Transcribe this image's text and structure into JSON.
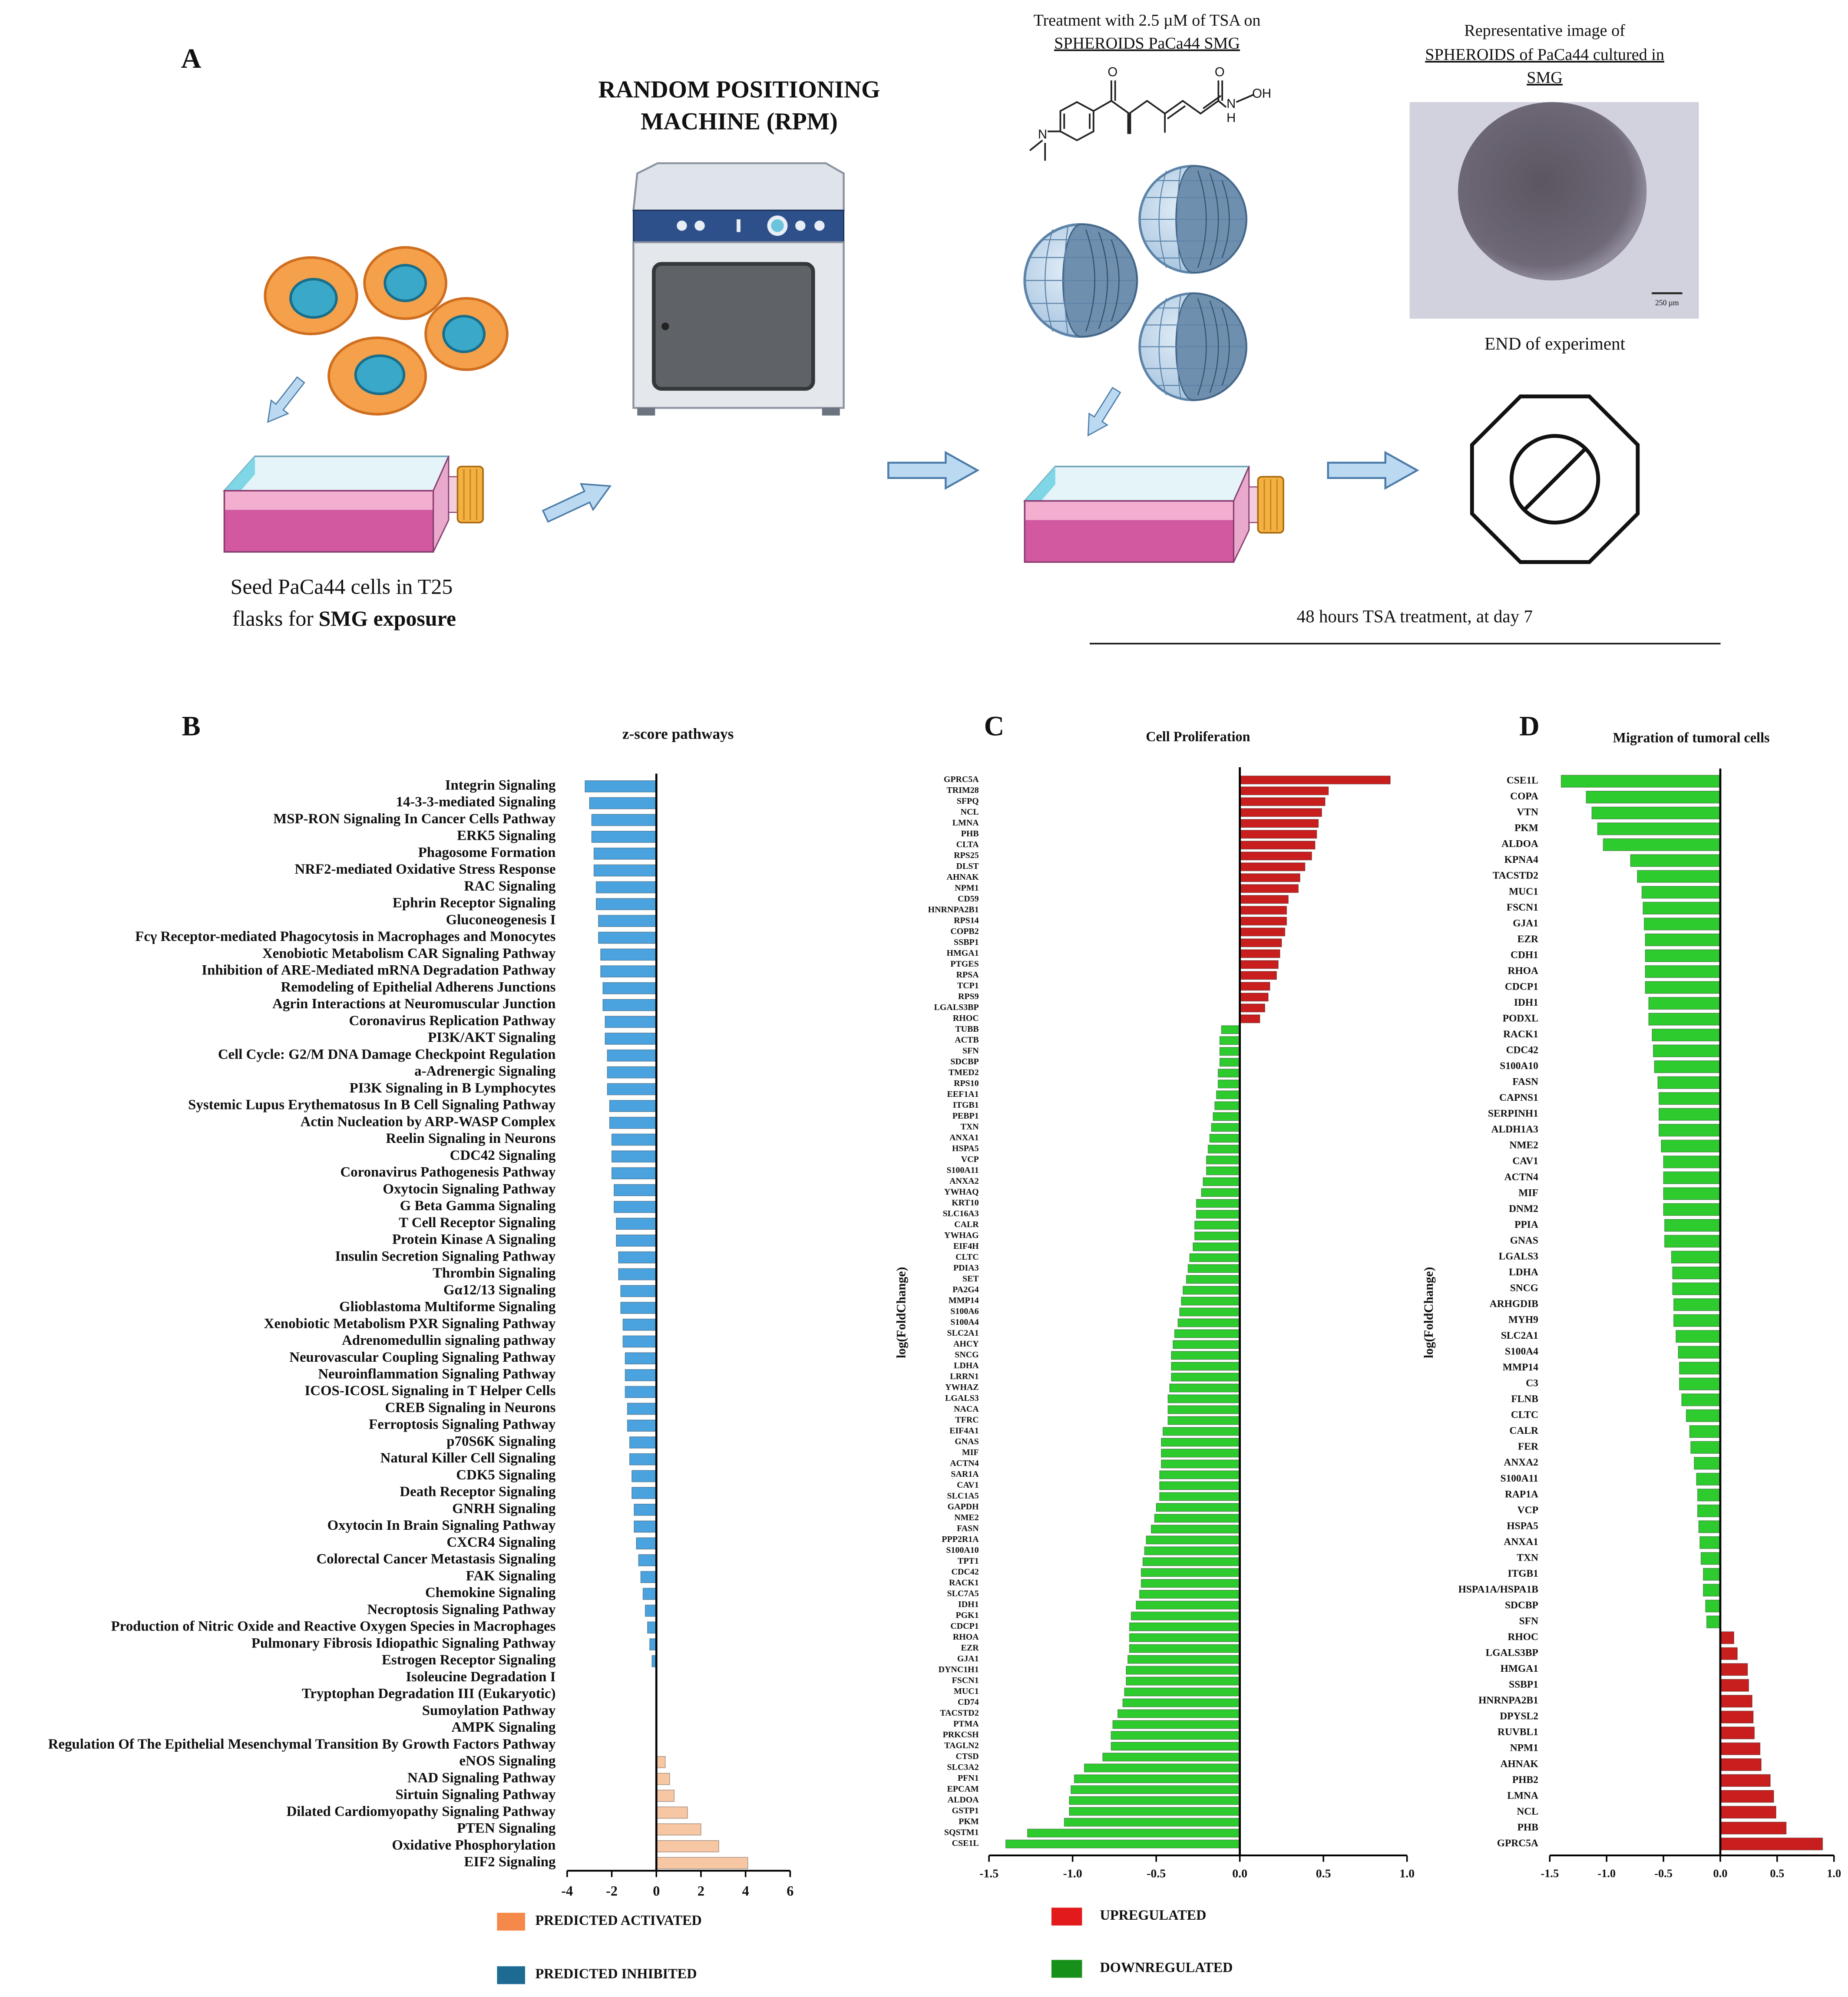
{
  "panel_a": {
    "label": "A",
    "rpm_title": [
      "RANDOM POSITIONING",
      "MACHINE (RPM)"
    ],
    "treatment": [
      "Treatment with 2.5 µM of TSA on",
      "SPHEROIDS PaCa44 SMG"
    ],
    "atoms": [
      "O",
      "O",
      "N",
      "H",
      "OH",
      "N"
    ],
    "image_title": [
      "Representative image of",
      "SPHEROIDS of PaCa44 cultured in",
      "SMG"
    ],
    "scale_bar": "250 µm",
    "end_text": "END of experiment",
    "seed": [
      "Seed PaCa44 cells in T25",
      "flasks  for",
      "SMG exposure"
    ],
    "duration": "48 hours TSA treatment, at day 7"
  },
  "chart_data": [
    {
      "type": "bar",
      "horizontal": true,
      "panel": "B",
      "title": "z-score pathways",
      "categories": [
        "Integrin Signaling",
        "14-3-3-mediated Signaling",
        "MSP-RON Signaling In Cancer Cells Pathway",
        "ERK5 Signaling",
        "Phagosome Formation",
        "NRF2-mediated Oxidative Stress Response",
        "RAC Signaling",
        "Ephrin Receptor Signaling",
        "Gluconeogenesis I",
        "Fcγ Receptor-mediated Phagocytosis in Macrophages and Monocytes",
        "Xenobiotic Metabolism CAR Signaling Pathway",
        "Inhibition of ARE-Mediated mRNA Degradation Pathway",
        "Remodeling of Epithelial Adherens Junctions",
        "Agrin Interactions at Neuromuscular Junction",
        "Coronavirus Replication Pathway",
        "PI3K/AKT Signaling",
        "Cell Cycle: G2/M DNA Damage Checkpoint Regulation",
        "a-Adrenergic Signaling",
        "PI3K Signaling in B Lymphocytes",
        "Systemic Lupus Erythematosus In B Cell Signaling Pathway",
        "Actin Nucleation by ARP-WASP Complex",
        "Reelin Signaling in Neurons",
        "CDC42 Signaling",
        "Coronavirus Pathogenesis Pathway",
        "Oxytocin Signaling Pathway",
        "G Beta Gamma Signaling",
        "T Cell Receptor Signaling",
        "Protein Kinase A Signaling",
        "Insulin Secretion Signaling Pathway",
        "Thrombin Signaling",
        "Gα12/13 Signaling",
        "Glioblastoma Multiforme Signaling",
        "Xenobiotic Metabolism PXR Signaling Pathway",
        "Adrenomedullin signaling pathway",
        "Neurovascular Coupling Signaling Pathway",
        "Neuroinflammation Signaling Pathway",
        "ICOS-ICOSL Signaling in T Helper Cells",
        "CREB Signaling in Neurons",
        "Ferroptosis Signaling Pathway",
        "p70S6K Signaling",
        "Natural Killer Cell Signaling",
        "CDK5 Signaling",
        "Death Receptor Signaling",
        "GNRH Signaling",
        "Oxytocin In Brain Signaling Pathway",
        "CXCR4 Signaling",
        "Colorectal Cancer Metastasis Signaling",
        "FAK Signaling",
        "Chemokine Signaling",
        "Necroptosis Signaling Pathway",
        "Production of Nitric Oxide and Reactive Oxygen Species in Macrophages",
        "Pulmonary Fibrosis Idiopathic Signaling Pathway",
        "Estrogen Receptor Signaling",
        "Isoleucine Degradation I",
        "Tryptophan Degradation III (Eukaryotic)",
        "Sumoylation Pathway",
        "AMPK Signaling",
        "Regulation Of The Epithelial Mesenchymal Transition By Growth Factors Pathway",
        "eNOS Signaling",
        "NAD Signaling Pathway",
        "Sirtuin Signaling Pathway",
        "Dilated Cardiomyopathy Signaling Pathway",
        "PTEN Signaling",
        "Oxidative Phosphorylation",
        "EIF2 Signaling"
      ],
      "values": [
        -3.2,
        -3.0,
        -2.9,
        -2.9,
        -2.8,
        -2.8,
        -2.7,
        -2.7,
        -2.6,
        -2.6,
        -2.5,
        -2.5,
        -2.4,
        -2.4,
        -2.3,
        -2.3,
        -2.2,
        -2.2,
        -2.2,
        -2.1,
        -2.1,
        -2.0,
        -2.0,
        -2.0,
        -1.9,
        -1.9,
        -1.8,
        -1.8,
        -1.7,
        -1.7,
        -1.6,
        -1.6,
        -1.5,
        -1.5,
        -1.4,
        -1.4,
        -1.4,
        -1.3,
        -1.3,
        -1.2,
        -1.2,
        -1.1,
        -1.1,
        -1.0,
        -1.0,
        -0.9,
        -0.8,
        -0.7,
        -0.6,
        -0.5,
        -0.4,
        -0.3,
        -0.2,
        0,
        0,
        0,
        0,
        0,
        0.4,
        0.6,
        0.8,
        1.4,
        2.0,
        2.8,
        4.1
      ],
      "xlim": [
        -4,
        6
      ],
      "xticks": [
        -4,
        -2,
        0,
        2,
        4,
        6
      ],
      "positive_color": "#f7c6a3",
      "negative_color": "#4aa3df",
      "legend": [
        {
          "name": "PREDICTED ACTIVATED",
          "color": "#f5894a"
        },
        {
          "name": "PREDICTED INHIBITED",
          "color": "#1d6a93"
        }
      ]
    },
    {
      "type": "bar",
      "horizontal": true,
      "panel": "C",
      "title": "Cell Proliferation",
      "ylabel": "log(FoldChange)",
      "categories": [
        "GPRC5A",
        "TRIM28",
        "SFPQ",
        "NCL",
        "LMNA",
        "PHB",
        "CLTA",
        "RPS25",
        "DLST",
        "AHNAK",
        "NPM1",
        "CD59",
        "HNRNPA2B1",
        "RPS14",
        "COPB2",
        "SSBP1",
        "HMGA1",
        "PTGES",
        "RPSA",
        "TCP1",
        "RPS9",
        "LGALS3BP",
        "RHOC",
        "TUBB",
        "ACTB",
        "SFN",
        "SDCBP",
        "TMED2",
        "RPS10",
        "EEF1A1",
        "ITGB1",
        "PEBP1",
        "TXN",
        "ANXA1",
        "HSPA5",
        "VCP",
        "S100A11",
        "ANXA2",
        "YWHAQ",
        "KRT10",
        "SLC16A3",
        "CALR",
        "YWHAG",
        "EIF4H",
        "CLTC",
        "PDIA3",
        "SET",
        "PA2G4",
        "MMP14",
        "S100A6",
        "S100A4",
        "SLC2A1",
        "AHCY",
        "SNCG",
        "LDHA",
        "LRRN1",
        "YWHAZ",
        "LGALS3",
        "NACA",
        "TFRC",
        "EIF4A1",
        "GNAS",
        "MIF",
        "ACTN4",
        "SAR1A",
        "CAV1",
        "SLC1A5",
        "GAPDH",
        "NME2",
        "FASN",
        "PPP2R1A",
        "S100A10",
        "TPT1",
        "CDC42",
        "RACK1",
        "SLC7A5",
        "IDH1",
        "PGK1",
        "CDCP1",
        "RHOA",
        "EZR",
        "GJA1",
        "DYNC1H1",
        "FSCN1",
        "MUC1",
        "CD74",
        "TACSTD2",
        "PTMA",
        "PRKCSH",
        "TAGLN2",
        "CTSD",
        "SLC3A2",
        "PFN1",
        "EPCAM",
        "ALDOA",
        "GSTP1",
        "PKM",
        "SQSTM1",
        "CSE1L"
      ],
      "values": [
        0.9,
        0.53,
        0.51,
        0.49,
        0.47,
        0.46,
        0.45,
        0.43,
        0.39,
        0.36,
        0.35,
        0.29,
        0.28,
        0.28,
        0.27,
        0.25,
        0.24,
        0.23,
        0.22,
        0.18,
        0.17,
        0.15,
        0.12,
        -0.11,
        -0.12,
        -0.12,
        -0.12,
        -0.13,
        -0.13,
        -0.14,
        -0.15,
        -0.16,
        -0.17,
        -0.18,
        -0.19,
        -0.2,
        -0.2,
        -0.22,
        -0.23,
        -0.26,
        -0.26,
        -0.27,
        -0.27,
        -0.28,
        -0.3,
        -0.31,
        -0.32,
        -0.34,
        -0.35,
        -0.36,
        -0.37,
        -0.39,
        -0.4,
        -0.41,
        -0.41,
        -0.41,
        -0.42,
        -0.43,
        -0.43,
        -0.43,
        -0.46,
        -0.47,
        -0.47,
        -0.47,
        -0.48,
        -0.48,
        -0.48,
        -0.5,
        -0.51,
        -0.53,
        -0.56,
        -0.57,
        -0.58,
        -0.59,
        -0.59,
        -0.6,
        -0.62,
        -0.65,
        -0.66,
        -0.66,
        -0.66,
        -0.67,
        -0.68,
        -0.68,
        -0.69,
        -0.7,
        -0.73,
        -0.76,
        -0.77,
        -0.77,
        -0.82,
        -0.93,
        -0.99,
        -1.01,
        -1.02,
        -1.02,
        -1.05,
        -1.27,
        -1.4
      ],
      "xlim": [
        -1.5,
        1
      ],
      "xticks": [
        -1.5,
        {
          "value": -1,
          "label": "-1.0"
        },
        -0.5,
        {
          "value": 0,
          "label": "0.0"
        },
        0.5,
        {
          "value": 1,
          "label": "1.0"
        }
      ],
      "positive_color": "#c81e1e",
      "negative_color": "#2ecb2e",
      "legend": [
        {
          "name": "UPREGULATED",
          "color": "#e31a1c"
        },
        {
          "name": "DOWNREGULATED",
          "color": "#17901a"
        }
      ]
    },
    {
      "type": "bar",
      "horizontal": true,
      "panel": "D",
      "title": "Migration of tumoral cells",
      "ylabel": "log(FoldChange)",
      "categories": [
        "CSE1L",
        "COPA",
        "VTN",
        "PKM",
        "ALDOA",
        "KPNA4",
        "TACSTD2",
        "MUC1",
        "FSCN1",
        "GJA1",
        "EZR",
        "CDH1",
        "RHOA",
        "CDCP1",
        "IDH1",
        "PODXL",
        "RACK1",
        "CDC42",
        "S100A10",
        "FASN",
        "CAPNS1",
        "SERPINH1",
        "ALDH1A3",
        "NME2",
        "CAV1",
        "ACTN4",
        "MIF",
        "DNM2",
        "PPIA",
        "GNAS",
        "LGALS3",
        "LDHA",
        "SNCG",
        "ARHGDIB",
        "MYH9",
        "SLC2A1",
        "S100A4",
        "MMP14",
        "C3",
        "FLNB",
        "CLTC",
        "CALR",
        "FER",
        "ANXA2",
        "S100A11",
        "RAP1A",
        "VCP",
        "HSPA5",
        "ANXA1",
        "TXN",
        "ITGB1",
        "HSPA1A/HSPA1B",
        "SDCBP",
        "SFN",
        "RHOC",
        "LGALS3BP",
        "HMGA1",
        "SSBP1",
        "HNRNPA2B1",
        "DPYSL2",
        "RUVBL1",
        "NPM1",
        "AHNAK",
        "PHB2",
        "LMNA",
        "NCL",
        "PHB",
        "GPRC5A"
      ],
      "values": [
        -1.4,
        -1.18,
        -1.13,
        -1.08,
        -1.03,
        -0.79,
        -0.73,
        -0.69,
        -0.68,
        -0.67,
        -0.66,
        -0.66,
        -0.66,
        -0.66,
        -0.63,
        -0.63,
        -0.6,
        -0.59,
        -0.58,
        -0.55,
        -0.54,
        -0.54,
        -0.54,
        -0.52,
        -0.5,
        -0.5,
        -0.5,
        -0.5,
        -0.49,
        -0.49,
        -0.43,
        -0.42,
        -0.42,
        -0.41,
        -0.41,
        -0.39,
        -0.37,
        -0.36,
        -0.36,
        -0.34,
        -0.3,
        -0.27,
        -0.26,
        -0.23,
        -0.21,
        -0.2,
        -0.2,
        -0.19,
        -0.18,
        -0.17,
        -0.15,
        -0.15,
        -0.13,
        -0.12,
        0.12,
        0.15,
        0.24,
        0.25,
        0.28,
        0.29,
        0.3,
        0.35,
        0.36,
        0.44,
        0.47,
        0.49,
        0.58,
        0.9
      ],
      "xlim": [
        -1.5,
        1
      ],
      "xticks": [
        -1.5,
        {
          "value": -1,
          "label": "-1.0"
        },
        -0.5,
        {
          "value": 0,
          "label": "0.0"
        },
        0.5,
        {
          "value": 1,
          "label": "1.0"
        }
      ],
      "positive_color": "#c81e1e",
      "negative_color": "#2ecb2e"
    }
  ]
}
